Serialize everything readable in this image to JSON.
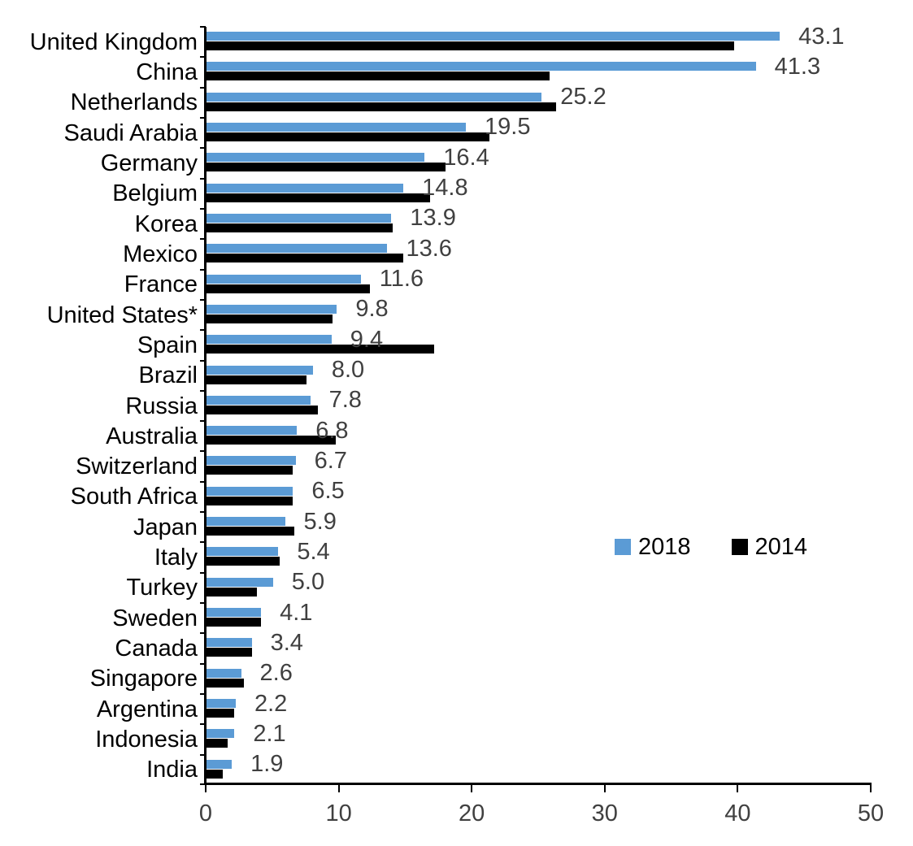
{
  "chart_data": {
    "type": "bar",
    "orientation": "horizontal",
    "title": "",
    "xlabel": "",
    "ylabel": "",
    "categories": [
      "United Kingdom",
      "China",
      "Netherlands",
      "Saudi Arabia",
      "Germany",
      "Belgium",
      "Korea",
      "Mexico",
      "France",
      "United States*",
      "Spain",
      "Brazil",
      "Russia",
      "Australia",
      "Switzerland",
      "South Africa",
      "Japan",
      "Italy",
      "Turkey",
      "Sweden",
      "Canada",
      "Singapore",
      "Argentina",
      "Indonesia",
      "India"
    ],
    "series": [
      {
        "name": "2018",
        "color": "#5B9BD5",
        "values": [
          43.1,
          41.3,
          25.2,
          19.5,
          16.4,
          14.8,
          13.9,
          13.6,
          11.6,
          9.8,
          9.4,
          8.0,
          7.8,
          6.8,
          6.7,
          6.5,
          5.9,
          5.4,
          5.0,
          4.1,
          3.4,
          2.6,
          2.2,
          2.1,
          1.9
        ]
      },
      {
        "name": "2014",
        "color": "#000000",
        "values": [
          39.7,
          25.8,
          26.3,
          21.3,
          18.0,
          16.8,
          14.0,
          14.8,
          12.3,
          9.5,
          17.1,
          7.5,
          8.4,
          9.7,
          6.5,
          6.5,
          6.6,
          5.5,
          3.8,
          4.1,
          3.4,
          2.8,
          2.1,
          1.6,
          1.2
        ]
      }
    ],
    "data_labels": [
      "43.1",
      "41.3",
      "25.2",
      "19.5",
      "16.4",
      "14.8",
      "13.9",
      "13.6",
      "11.6",
      "9.8",
      "9.4",
      "8.0",
      "7.8",
      "6.8",
      "6.7",
      "6.5",
      "5.9",
      "5.4",
      "5.0",
      "4.1",
      "3.4",
      "2.6",
      "2.2",
      "2.1",
      "1.9"
    ],
    "data_label_series": "2018",
    "x_ticks": [
      "0",
      "10",
      "20",
      "30",
      "40",
      "50"
    ],
    "xlim": [
      0,
      50
    ],
    "grid": false,
    "legend_position": "middle-right"
  },
  "colors": {
    "series_2018": "#5B9BD5",
    "series_2014": "#000000",
    "value_label": "#404040",
    "axis": "#000000",
    "background": "#ffffff"
  }
}
